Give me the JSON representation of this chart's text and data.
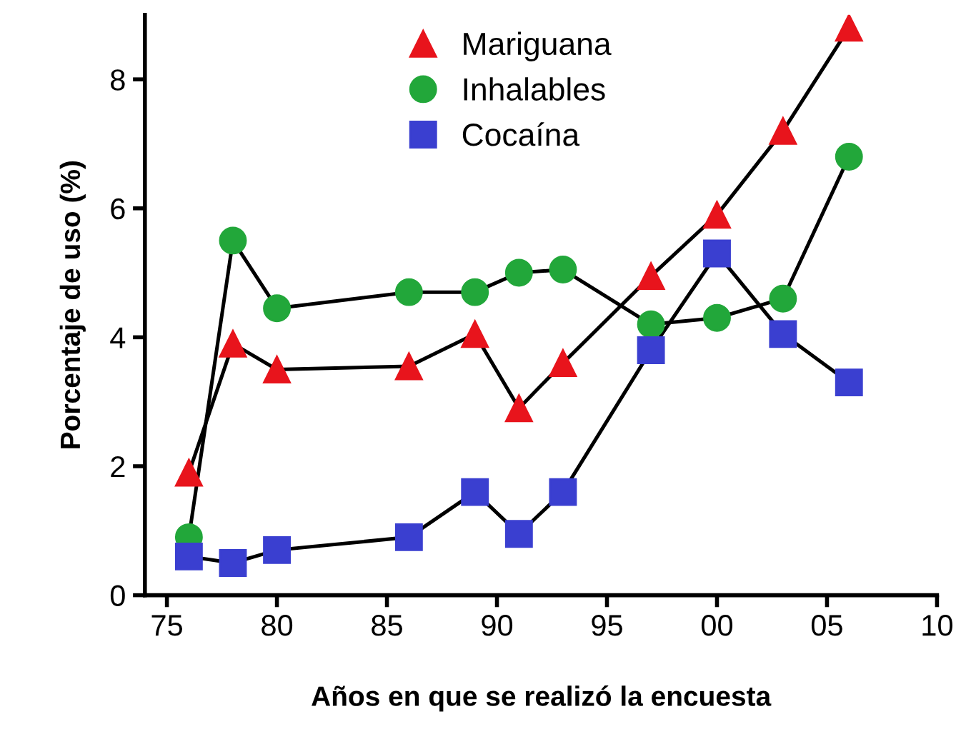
{
  "chart_data": {
    "type": "line",
    "xlabel": "Años en que se realizó la encuesta",
    "ylabel": "Porcentaje de uso (%)",
    "x": [
      1976,
      1978,
      1980,
      1986,
      1989,
      1991,
      1993,
      1997,
      2000,
      2003,
      2006
    ],
    "series": [
      {
        "name": "Mariguana",
        "color": "#e8141c",
        "marker": "triangle",
        "values": [
          1.9,
          3.9,
          3.5,
          3.55,
          4.05,
          2.9,
          3.6,
          4.95,
          5.9,
          7.2,
          8.8
        ]
      },
      {
        "name": "Inhalables",
        "color": "#22a73a",
        "marker": "circle",
        "values": [
          0.9,
          5.5,
          4.45,
          4.7,
          4.7,
          5.0,
          5.05,
          4.2,
          4.3,
          4.6,
          6.8
        ]
      },
      {
        "name": "Cocaína",
        "color": "#3a3fd0",
        "marker": "square",
        "values": [
          0.6,
          0.5,
          0.7,
          0.9,
          1.6,
          0.95,
          1.6,
          3.8,
          5.3,
          4.05,
          3.3
        ]
      }
    ],
    "xlim": [
      1974,
      2010
    ],
    "ylim": [
      0,
      9
    ],
    "xticks": [
      {
        "value": 1975,
        "label": "75"
      },
      {
        "value": 1980,
        "label": "80"
      },
      {
        "value": 1985,
        "label": "85"
      },
      {
        "value": 1990,
        "label": "90"
      },
      {
        "value": 1995,
        "label": "95"
      },
      {
        "value": 2000,
        "label": "00"
      },
      {
        "value": 2005,
        "label": "05"
      },
      {
        "value": 2010,
        "label": "10"
      }
    ],
    "yticks": [
      0,
      2,
      4,
      6,
      8
    ],
    "legend": "top",
    "line_style": "solid"
  }
}
